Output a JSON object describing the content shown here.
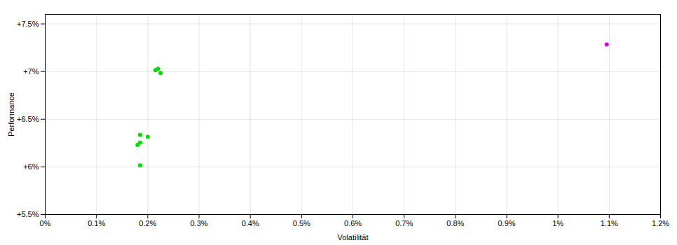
{
  "chart_data": {
    "type": "scatter",
    "xlabel": "Volatilität",
    "ylabel": "Performance",
    "xlim": [
      0.0,
      0.012
    ],
    "ylim": [
      0.055,
      0.076
    ],
    "xticks": [
      {
        "value": 0.0,
        "label": "0%"
      },
      {
        "value": 0.001,
        "label": "0.1%"
      },
      {
        "value": 0.002,
        "label": "0.2%"
      },
      {
        "value": 0.003,
        "label": "0.3%"
      },
      {
        "value": 0.004,
        "label": "0.4%"
      },
      {
        "value": 0.005,
        "label": "0.5%"
      },
      {
        "value": 0.006,
        "label": "0.6%"
      },
      {
        "value": 0.007,
        "label": "0.7%"
      },
      {
        "value": 0.008,
        "label": "0.8%"
      },
      {
        "value": 0.009,
        "label": "0.9%"
      },
      {
        "value": 0.01,
        "label": "1%"
      },
      {
        "value": 0.011,
        "label": "1.1%"
      },
      {
        "value": 0.012,
        "label": "1.2%"
      }
    ],
    "yticks": [
      {
        "value": 0.055,
        "label": "+5.5%"
      },
      {
        "value": 0.06,
        "label": "+6%"
      },
      {
        "value": 0.065,
        "label": "+6.5%"
      },
      {
        "value": 0.07,
        "label": "+7%"
      },
      {
        "value": 0.075,
        "label": "+7.5%"
      }
    ],
    "grid": true,
    "series": [
      {
        "color": "#00dd00",
        "x": [
          0.00215,
          0.0022,
          0.00225,
          0.00185,
          0.002,
          0.00185,
          0.0018,
          0.00185
        ],
        "values": [
          0.07015,
          0.0703,
          0.06985,
          0.06335,
          0.06315,
          0.06255,
          0.0623,
          0.06015
        ]
      },
      {
        "color": "#dd00dd",
        "x": [
          0.01095
        ],
        "values": [
          0.07285
        ]
      }
    ]
  }
}
